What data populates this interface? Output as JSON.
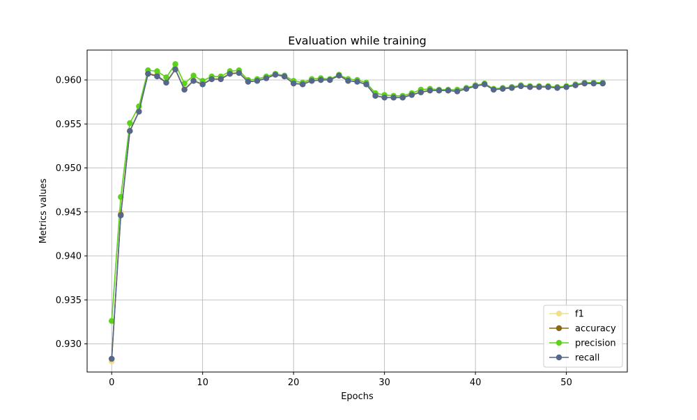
{
  "chart_data": {
    "type": "line",
    "title": "Evaluation while training",
    "xlabel": "Epochs",
    "ylabel": "Metrics values",
    "xlim": [
      -2.7,
      56.7
    ],
    "ylim": [
      0.9268,
      0.9634
    ],
    "xticks": [
      0,
      10,
      20,
      30,
      40,
      50
    ],
    "xtick_labels": [
      "0",
      "10",
      "20",
      "30",
      "40",
      "50"
    ],
    "yticks": [
      0.93,
      0.935,
      0.94,
      0.945,
      0.95,
      0.955,
      0.96
    ],
    "ytick_labels": [
      "0.930",
      "0.935",
      "0.940",
      "0.945",
      "0.950",
      "0.955",
      "0.960"
    ],
    "grid": true,
    "legend_position": "bottom-right",
    "x": [
      0,
      1,
      2,
      3,
      4,
      5,
      6,
      7,
      8,
      9,
      10,
      11,
      12,
      13,
      14,
      15,
      16,
      17,
      18,
      19,
      20,
      21,
      22,
      23,
      24,
      25,
      26,
      27,
      28,
      29,
      30,
      31,
      32,
      33,
      34,
      35,
      36,
      37,
      38,
      39,
      40,
      41,
      42,
      43,
      44,
      45,
      46,
      47,
      48,
      49,
      50,
      51,
      52,
      53,
      54
    ],
    "series": [
      {
        "name": "f1",
        "color": "#f0e08c",
        "values": [
          0.928,
          0.945,
          0.9542,
          0.9565,
          0.9608,
          0.9605,
          0.9598,
          0.9613,
          0.959,
          0.96,
          0.9596,
          0.9601,
          0.9602,
          0.9608,
          0.9609,
          0.9599,
          0.96,
          0.9602,
          0.9606,
          0.9604,
          0.9597,
          0.9596,
          0.96,
          0.9601,
          0.96,
          0.9605,
          0.96,
          0.9599,
          0.9595,
          0.9583,
          0.9581,
          0.958,
          0.9581,
          0.9584,
          0.9587,
          0.9589,
          0.9588,
          0.9588,
          0.9587,
          0.959,
          0.9594,
          0.9595,
          0.9589,
          0.959,
          0.9591,
          0.9593,
          0.9592,
          0.9592,
          0.9592,
          0.9591,
          0.9592,
          0.9594,
          0.9596,
          0.9596,
          0.9596
        ]
      },
      {
        "name": "accuracy",
        "color": "#8b6914",
        "values": [
          0.9283,
          0.9447,
          0.9542,
          0.9564,
          0.9607,
          0.9605,
          0.9597,
          0.9612,
          0.9589,
          0.9599,
          0.9595,
          0.9601,
          0.9601,
          0.9607,
          0.9608,
          0.9598,
          0.9599,
          0.9602,
          0.9606,
          0.9604,
          0.9596,
          0.9595,
          0.9599,
          0.96,
          0.96,
          0.9605,
          0.9599,
          0.9598,
          0.9595,
          0.9582,
          0.958,
          0.958,
          0.958,
          0.9583,
          0.9586,
          0.9588,
          0.9588,
          0.9588,
          0.9587,
          0.959,
          0.9593,
          0.9595,
          0.9589,
          0.959,
          0.9591,
          0.9593,
          0.9592,
          0.9592,
          0.9592,
          0.9591,
          0.9592,
          0.9594,
          0.9596,
          0.9596,
          0.9596
        ]
      },
      {
        "name": "precision",
        "color": "#5cd21a",
        "values": [
          0.9326,
          0.9467,
          0.9551,
          0.957,
          0.9611,
          0.961,
          0.9603,
          0.9618,
          0.9596,
          0.9605,
          0.9599,
          0.9604,
          0.9604,
          0.961,
          0.9611,
          0.96,
          0.9601,
          0.9604,
          0.9607,
          0.9605,
          0.9599,
          0.9597,
          0.9601,
          0.9602,
          0.9601,
          0.9606,
          0.9601,
          0.96,
          0.9597,
          0.9585,
          0.9583,
          0.9582,
          0.9582,
          0.9585,
          0.9589,
          0.959,
          0.9589,
          0.9589,
          0.9589,
          0.9591,
          0.9594,
          0.9596,
          0.959,
          0.9591,
          0.9592,
          0.9594,
          0.9593,
          0.9593,
          0.9593,
          0.9592,
          0.9593,
          0.9595,
          0.9597,
          0.9597,
          0.9597
        ]
      },
      {
        "name": "recall",
        "color": "#55678a",
        "values": [
          0.9283,
          0.9446,
          0.9542,
          0.9564,
          0.9607,
          0.9604,
          0.9597,
          0.9612,
          0.9589,
          0.9599,
          0.9595,
          0.9601,
          0.9601,
          0.9607,
          0.9608,
          0.9598,
          0.9599,
          0.9602,
          0.9606,
          0.9604,
          0.9596,
          0.9595,
          0.9599,
          0.96,
          0.96,
          0.9605,
          0.9599,
          0.9598,
          0.9595,
          0.9582,
          0.958,
          0.958,
          0.958,
          0.9583,
          0.9586,
          0.9588,
          0.9588,
          0.9588,
          0.9587,
          0.959,
          0.9593,
          0.9595,
          0.9589,
          0.959,
          0.9591,
          0.9593,
          0.9592,
          0.9592,
          0.9592,
          0.9591,
          0.9592,
          0.9594,
          0.9596,
          0.9596,
          0.9596
        ]
      }
    ]
  }
}
